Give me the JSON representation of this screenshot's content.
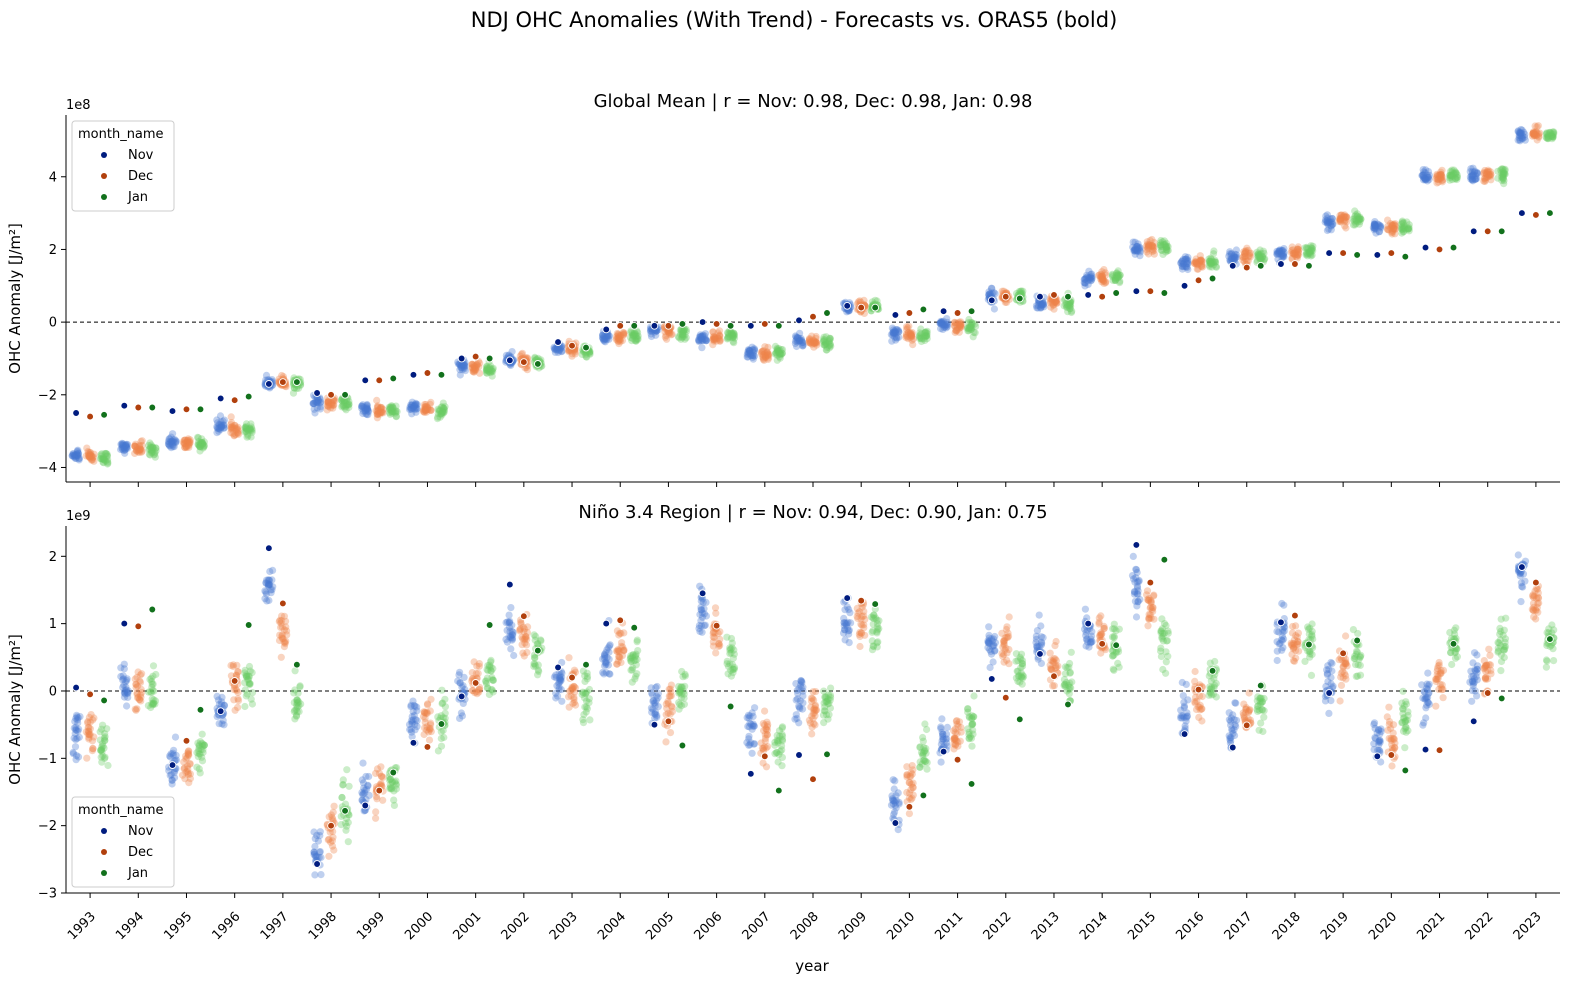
{
  "figure": {
    "suptitle": "NDJ OHC Anomalies (With Trend) - Forecasts vs. ORAS5 (bold)",
    "xlabel": "year",
    "legend": {
      "title": "month_name",
      "entries": [
        {
          "label": "Nov",
          "color": "#001c7f"
        },
        {
          "label": "Dec",
          "color": "#b1400d"
        },
        {
          "label": "Jan",
          "color": "#12711c"
        }
      ]
    },
    "ensemble_colors": {
      "Nov": "#4878d0",
      "Dec": "#ee854a",
      "Jan": "#6acc64"
    }
  },
  "chart_data": [
    {
      "type": "scatter",
      "title": "Global Mean | r = Nov: 0.98, Dec: 0.98, Jan: 0.98",
      "ylabel": "OHC Anomaly [J/m²]",
      "offset_label": "1e8",
      "ylim": [
        -4.4,
        5.7
      ],
      "yticks": [
        -4,
        -2,
        0,
        2,
        4
      ],
      "ytick_labels": [
        "−4",
        "−2",
        "0",
        "2",
        "4"
      ],
      "hline": 0,
      "legend_position": "upper left",
      "x": [
        1993,
        1994,
        1995,
        1996,
        1997,
        1998,
        1999,
        2000,
        2001,
        2002,
        2003,
        2004,
        2005,
        2006,
        2007,
        2008,
        2009,
        2010,
        2011,
        2012,
        2013,
        2014,
        2015,
        2016,
        2017,
        2018,
        2019,
        2020,
        2021,
        2022,
        2023
      ],
      "ensemble_mean": {
        "Nov": [
          -3.65,
          -3.45,
          -3.3,
          -2.85,
          -1.65,
          -2.2,
          -2.4,
          -2.35,
          -1.2,
          -1.05,
          -0.75,
          -0.4,
          -0.25,
          -0.45,
          -0.85,
          -0.5,
          0.4,
          -0.35,
          -0.05,
          0.7,
          0.5,
          1.2,
          2.05,
          1.65,
          1.8,
          1.9,
          2.75,
          2.65,
          4.0,
          4.05,
          5.15
        ],
        "Dec": [
          -3.65,
          -3.5,
          -3.35,
          -2.95,
          -1.65,
          -2.25,
          -2.45,
          -2.4,
          -1.25,
          -1.1,
          -0.75,
          -0.4,
          -0.25,
          -0.45,
          -0.85,
          -0.55,
          0.4,
          -0.35,
          -0.1,
          0.7,
          0.55,
          1.2,
          2.1,
          1.65,
          1.8,
          1.9,
          2.8,
          2.6,
          4.0,
          4.05,
          5.15
        ],
        "Jan": [
          -3.75,
          -3.5,
          -3.35,
          -2.95,
          -1.65,
          -2.25,
          -2.45,
          -2.45,
          -1.3,
          -1.15,
          -0.8,
          -0.4,
          -0.3,
          -0.4,
          -0.85,
          -0.55,
          0.45,
          -0.35,
          -0.15,
          0.7,
          0.5,
          1.25,
          2.1,
          1.65,
          1.8,
          1.95,
          2.8,
          2.6,
          4.05,
          4.05,
          5.15
        ]
      },
      "ensemble_spread": 0.12,
      "oras5": {
        "Nov": [
          -2.5,
          -2.3,
          -2.45,
          -2.1,
          -1.7,
          -1.95,
          -1.6,
          -1.45,
          -1.0,
          -1.05,
          -0.55,
          -0.2,
          -0.1,
          0.0,
          -0.1,
          0.05,
          0.45,
          0.2,
          0.3,
          0.6,
          0.7,
          0.75,
          0.85,
          1.0,
          1.55,
          1.6,
          1.9,
          1.85,
          2.05,
          2.5,
          3.0
        ],
        "Dec": [
          -2.6,
          -2.35,
          -2.4,
          -2.15,
          -1.65,
          -2.0,
          -1.6,
          -1.4,
          -0.95,
          -1.1,
          -0.65,
          -0.1,
          -0.1,
          -0.05,
          -0.05,
          0.15,
          0.4,
          0.25,
          0.25,
          0.7,
          0.75,
          0.7,
          0.85,
          1.15,
          1.5,
          1.6,
          1.9,
          1.9,
          2.0,
          2.5,
          2.95
        ],
        "Jan": [
          -2.55,
          -2.35,
          -2.4,
          -2.05,
          -1.65,
          -2.0,
          -1.55,
          -1.45,
          -1.0,
          -1.15,
          -0.7,
          -0.1,
          -0.05,
          -0.1,
          -0.1,
          0.25,
          0.4,
          0.35,
          0.3,
          0.65,
          0.7,
          0.8,
          0.8,
          1.2,
          1.55,
          1.55,
          1.85,
          1.8,
          2.05,
          2.5,
          3.0
        ]
      }
    },
    {
      "type": "scatter",
      "title": "Niño 3.4 Region | r = Nov: 0.94, Dec: 0.90, Jan: 0.75",
      "ylabel": "OHC Anomaly [J/m²]",
      "offset_label": "1e9",
      "ylim": [
        -3.0,
        2.45
      ],
      "yticks": [
        -3,
        -2,
        -1,
        0,
        1,
        2
      ],
      "ytick_labels": [
        "−3",
        "−2",
        "−1",
        "0",
        "1",
        "2"
      ],
      "hline": 0,
      "legend_position": "lower left",
      "x": [
        1993,
        1994,
        1995,
        1996,
        1997,
        1998,
        1999,
        2000,
        2001,
        2002,
        2003,
        2004,
        2005,
        2006,
        2007,
        2008,
        2009,
        2010,
        2011,
        2012,
        2013,
        2014,
        2015,
        2016,
        2017,
        2018,
        2019,
        2020,
        2021,
        2022,
        2023
      ],
      "ensemble_mean": {
        "Nov": [
          -0.6,
          0.05,
          -1.1,
          -0.25,
          1.5,
          -2.4,
          -1.55,
          -0.45,
          -0.05,
          0.9,
          0.1,
          0.5,
          -0.2,
          1.2,
          -0.6,
          -0.1,
          1.05,
          -1.7,
          -0.7,
          0.7,
          0.7,
          0.9,
          1.55,
          -0.4,
          -0.55,
          0.85,
          0.05,
          -0.8,
          -0.1,
          0.2,
          1.7
        ],
        "Dec": [
          -0.65,
          0.0,
          -1.15,
          0.15,
          0.9,
          -2.05,
          -1.45,
          -0.4,
          0.15,
          0.85,
          0.1,
          0.65,
          -0.25,
          0.85,
          -0.7,
          -0.3,
          1.05,
          -1.35,
          -0.65,
          0.65,
          0.4,
          0.8,
          1.3,
          -0.1,
          -0.4,
          0.75,
          0.35,
          -0.7,
          0.2,
          0.3,
          1.3
        ],
        "Jan": [
          -0.75,
          -0.05,
          -0.9,
          0.1,
          -0.15,
          -1.8,
          -1.35,
          -0.4,
          0.25,
          0.55,
          -0.1,
          0.45,
          0.0,
          0.5,
          -0.75,
          -0.2,
          0.9,
          -0.95,
          -0.45,
          0.3,
          0.2,
          0.7,
          0.7,
          0.1,
          -0.2,
          0.7,
          0.5,
          -0.4,
          0.65,
          0.7,
          0.7
        ]
      },
      "ensemble_spread": 0.22,
      "oras5": {
        "Nov": [
          0.05,
          1.0,
          -1.1,
          -0.3,
          2.12,
          -2.57,
          -1.7,
          -0.77,
          -0.08,
          1.58,
          0.35,
          1.0,
          -0.5,
          1.45,
          -1.23,
          -0.95,
          1.38,
          -1.96,
          -0.9,
          0.18,
          0.55,
          1.0,
          2.17,
          -0.64,
          -0.84,
          1.02,
          -0.03,
          -0.97,
          -0.87,
          -0.45,
          1.84
        ],
        "Dec": [
          -0.05,
          0.96,
          -0.74,
          0.15,
          1.3,
          -2.0,
          -1.48,
          -0.83,
          0.12,
          1.11,
          0.2,
          1.05,
          -0.45,
          0.97,
          -0.97,
          -1.31,
          1.34,
          -1.72,
          -1.02,
          -0.1,
          0.22,
          0.7,
          1.61,
          0.02,
          -0.51,
          1.12,
          0.56,
          -0.95,
          -0.88,
          -0.03,
          1.61
        ],
        "Jan": [
          -0.14,
          1.21,
          -0.28,
          0.98,
          0.39,
          -1.78,
          -1.21,
          -0.49,
          0.98,
          0.6,
          0.39,
          0.94,
          -0.81,
          -0.23,
          -1.48,
          -0.94,
          1.29,
          -1.55,
          -1.38,
          -0.42,
          -0.2,
          0.68,
          1.95,
          0.3,
          0.08,
          0.69,
          0.75,
          -1.18,
          0.7,
          -0.11,
          0.77
        ]
      }
    }
  ]
}
